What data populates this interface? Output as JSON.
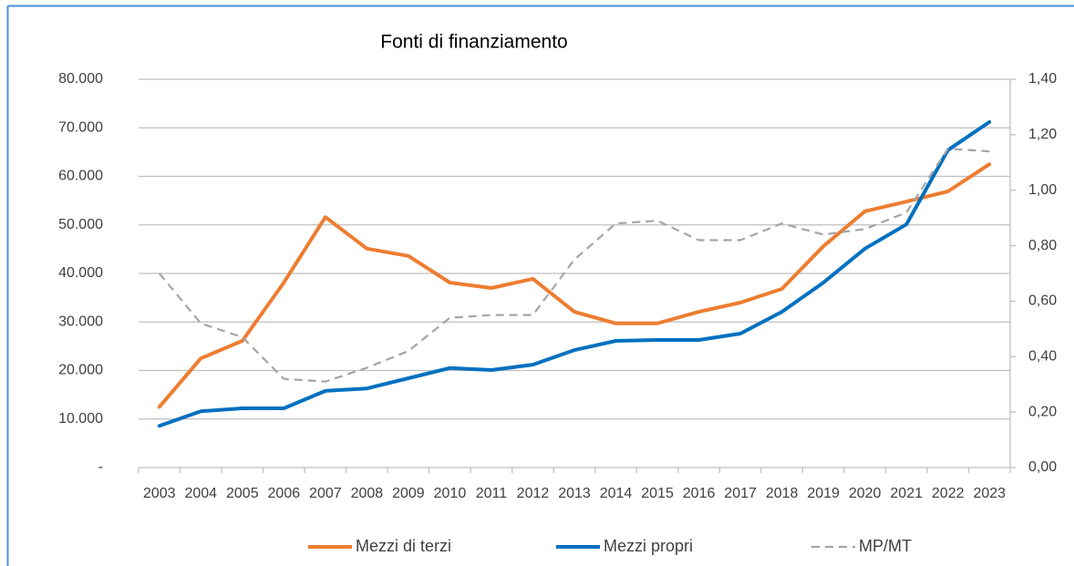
{
  "chart_data": {
    "type": "line",
    "title": "Fonti di finanziamento",
    "categories": [
      "2003",
      "2004",
      "2005",
      "2006",
      "2007",
      "2008",
      "2009",
      "2010",
      "2011",
      "2012",
      "2013",
      "2014",
      "2015",
      "2016",
      "2017",
      "2018",
      "2019",
      "2020",
      "2021",
      "2022",
      "2023"
    ],
    "series": [
      {
        "name": "Mezzi di terzi",
        "color": "#ED7D31",
        "line_style": "solid",
        "values": [
          12500,
          22500,
          26100,
          38100,
          51600,
          45100,
          43600,
          38100,
          37000,
          38900,
          32100,
          29700,
          29700,
          32100,
          34000,
          36800,
          45600,
          52800,
          54800,
          56900,
          62500
        ]
      },
      {
        "name": "Mezzi propri",
        "color": "#0070C0",
        "line_style": "solid",
        "values": [
          8600,
          11600,
          12200,
          12200,
          15800,
          16300,
          18400,
          20500,
          20100,
          21200,
          24200,
          26100,
          26300,
          26300,
          27600,
          32100,
          38100,
          45100,
          50100,
          65400,
          71200
        ]
      },
      {
        "name": "MP/MT",
        "color": "#A5A5A5",
        "line_style": "dashed",
        "axis": "y2",
        "values": [
          0.7,
          0.52,
          0.47,
          0.32,
          0.31,
          0.36,
          0.42,
          0.54,
          0.55,
          0.55,
          0.75,
          0.88,
          0.89,
          0.82,
          0.82,
          0.88,
          0.84,
          0.86,
          0.92,
          1.15,
          1.14
        ]
      }
    ],
    "ylim": [
      0,
      80000
    ],
    "yticks": [
      {
        "value": 0,
        "label": "-"
      },
      {
        "value": 10000,
        "label": "10.000"
      },
      {
        "value": 20000,
        "label": "20.000"
      },
      {
        "value": 30000,
        "label": "30.000"
      },
      {
        "value": 40000,
        "label": "40.000"
      },
      {
        "value": 50000,
        "label": "50.000"
      },
      {
        "value": 60000,
        "label": "60.000"
      },
      {
        "value": 70000,
        "label": "70.000"
      },
      {
        "value": 80000,
        "label": "80.000"
      }
    ],
    "y2lim": [
      0,
      1.4
    ],
    "y2ticks": [
      {
        "value": 0,
        "label": "0,00"
      },
      {
        "value": 0.2,
        "label": "0,20"
      },
      {
        "value": 0.4,
        "label": "0,40"
      },
      {
        "value": 0.6,
        "label": "0,60"
      },
      {
        "value": 0.8,
        "label": "0,80"
      },
      {
        "value": 1.0,
        "label": "1,00"
      },
      {
        "value": 1.2,
        "label": "1,20"
      },
      {
        "value": 1.4,
        "label": "1,40"
      }
    ],
    "grid": true,
    "legend": "bottom"
  }
}
